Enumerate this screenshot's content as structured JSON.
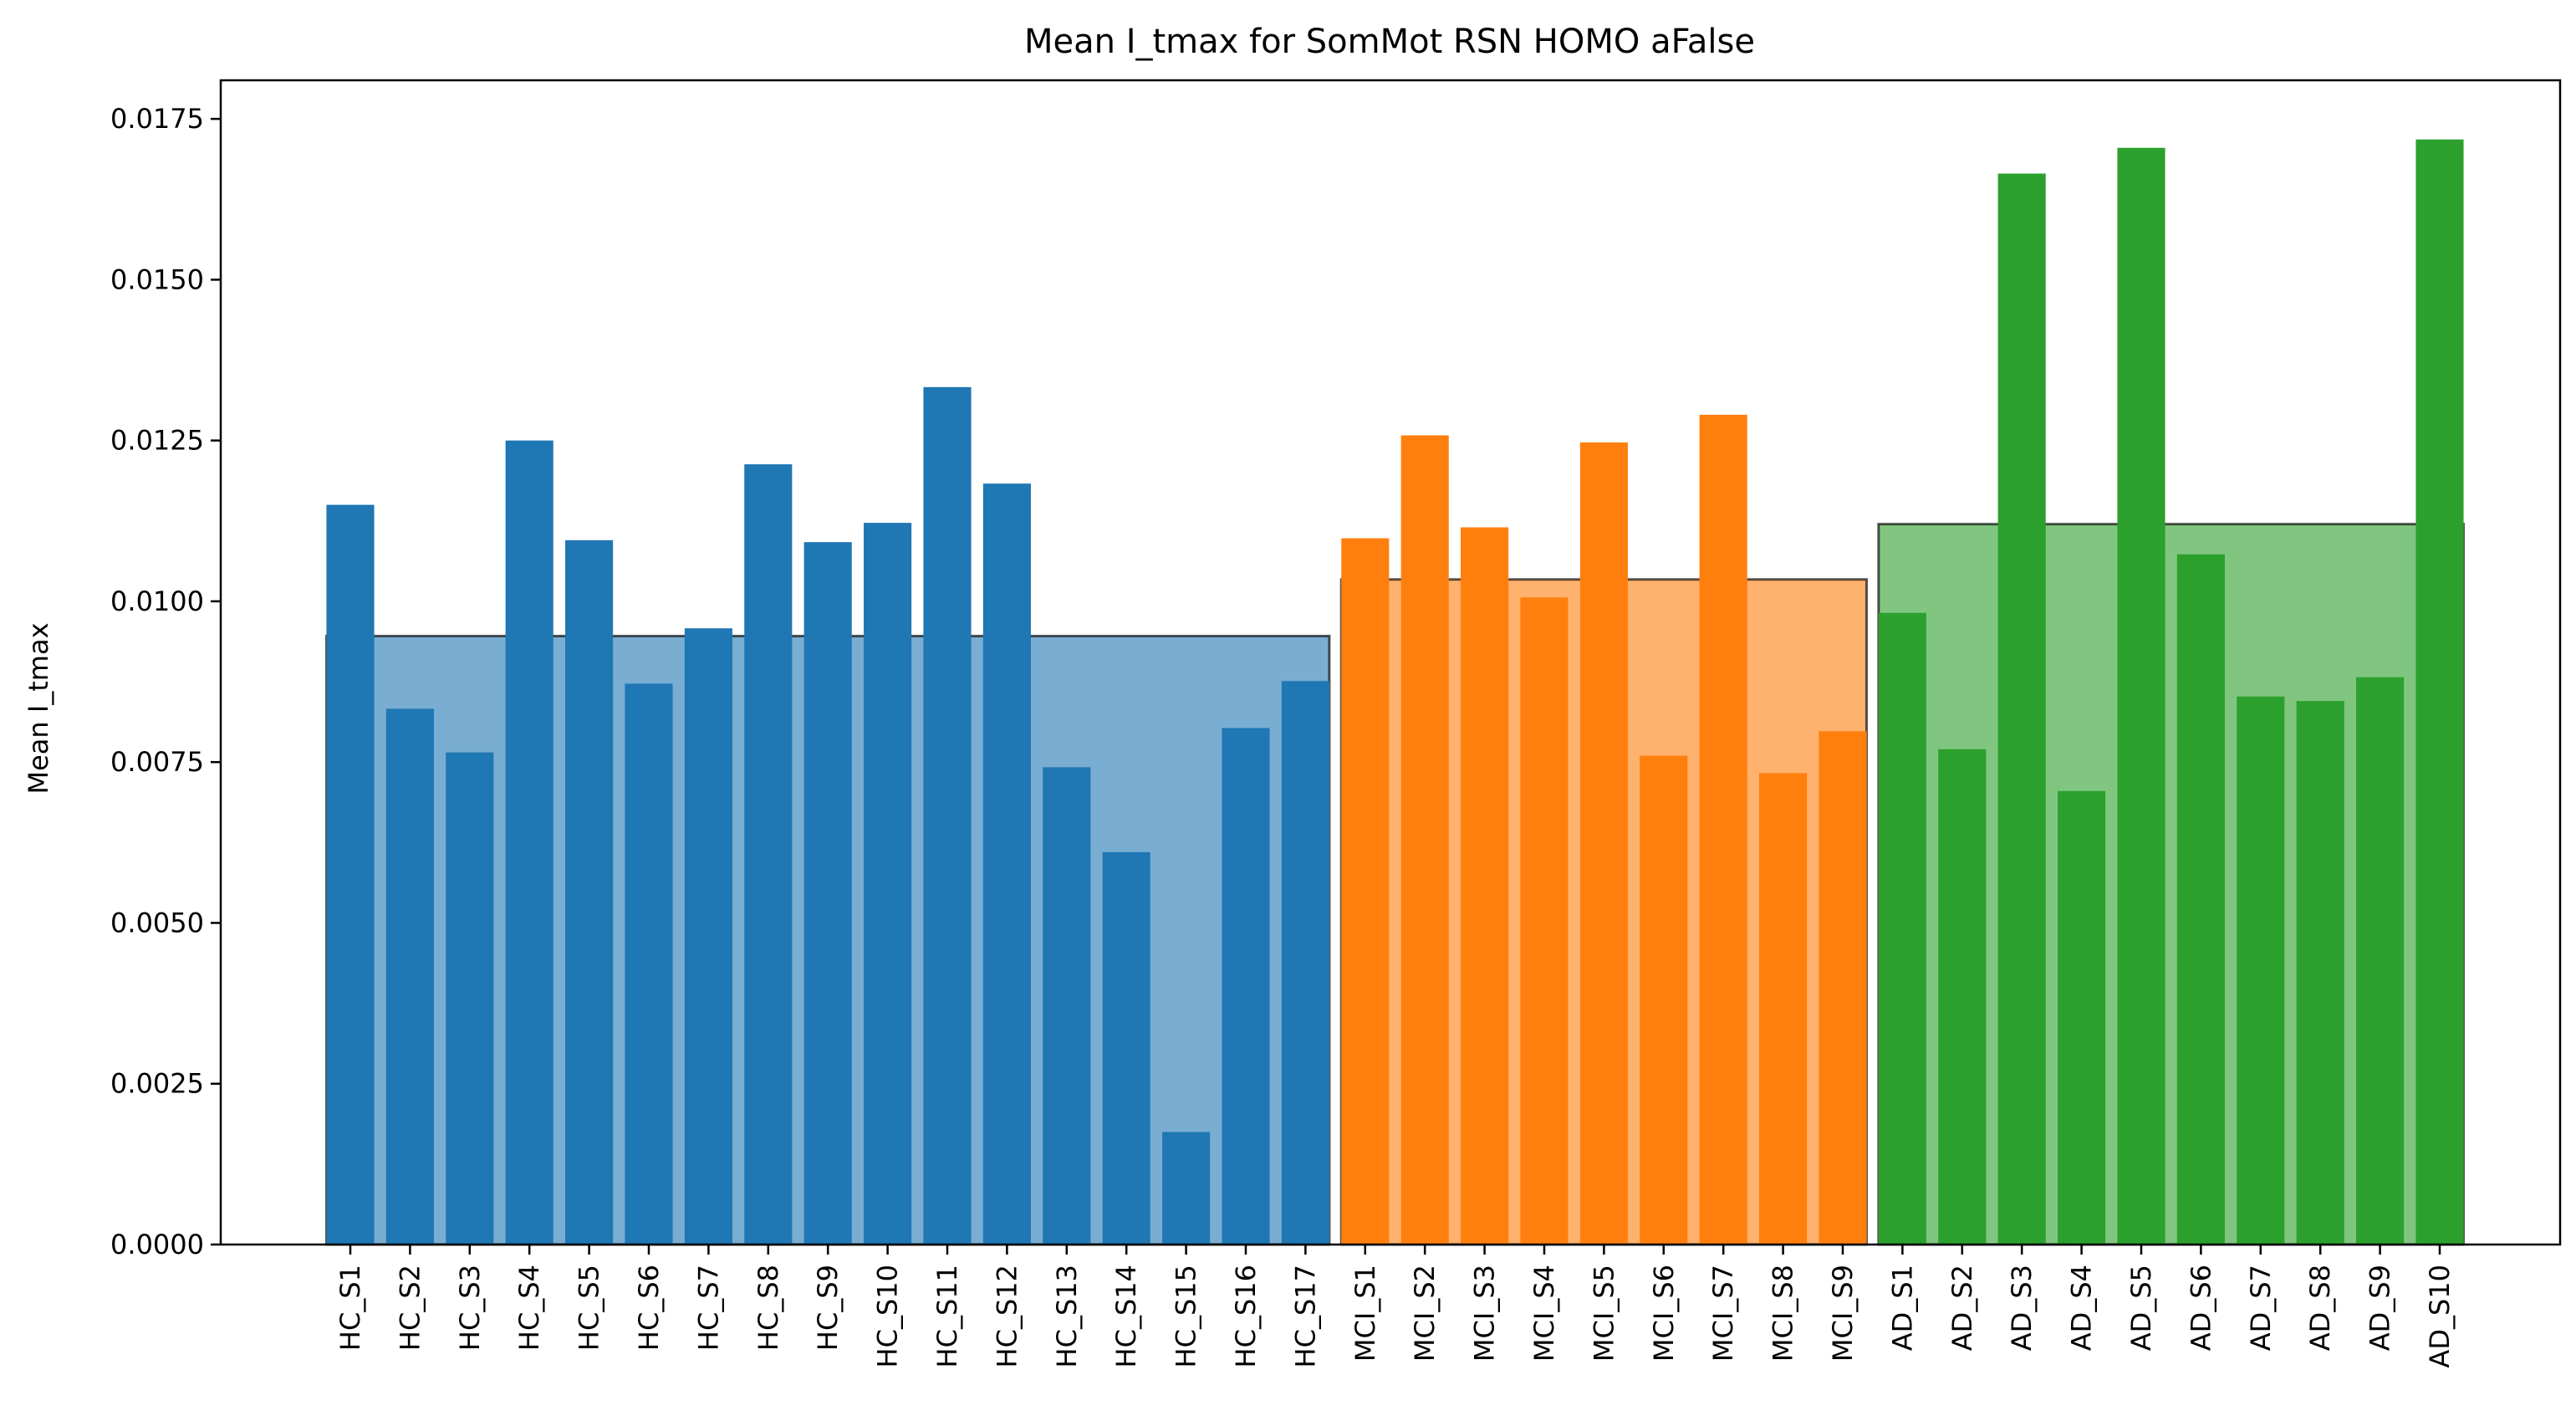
{
  "chart_data": {
    "type": "bar",
    "title": "Mean I_tmax for SomMot RSN HOMO aFalse",
    "xlabel": "",
    "ylabel": "Mean I_tmax",
    "ylim": [
      0,
      0.0181
    ],
    "yticks": [
      "0.0000",
      "0.0025",
      "0.0050",
      "0.0075",
      "0.0100",
      "0.0125",
      "0.0150",
      "0.0175"
    ],
    "grid": false,
    "legend": "none",
    "categories": [
      "HC_S1",
      "HC_S2",
      "HC_S3",
      "HC_S4",
      "HC_S5",
      "HC_S6",
      "HC_S7",
      "HC_S8",
      "HC_S9",
      "HC_S10",
      "HC_S11",
      "HC_S12",
      "HC_S13",
      "HC_S14",
      "HC_S15",
      "HC_S16",
      "HC_S17",
      "MCI_S1",
      "MCI_S2",
      "MCI_S3",
      "MCI_S4",
      "MCI_S5",
      "MCI_S6",
      "MCI_S7",
      "MCI_S8",
      "MCI_S9",
      "AD_S1",
      "AD_S2",
      "AD_S3",
      "AD_S4",
      "AD_S5",
      "AD_S6",
      "AD_S7",
      "AD_S8",
      "AD_S9",
      "AD_S10"
    ],
    "groups": [
      {
        "color": "#1f77b4",
        "categories": [
          "HC_S1",
          "HC_S2",
          "HC_S3",
          "HC_S4",
          "HC_S5",
          "HC_S6",
          "HC_S7",
          "HC_S8",
          "HC_S9",
          "HC_S10",
          "HC_S11",
          "HC_S12",
          "HC_S13",
          "HC_S14",
          "HC_S15",
          "HC_S16",
          "HC_S17"
        ],
        "values": [
          0.0115,
          0.00833,
          0.00765,
          0.0125,
          0.01095,
          0.00872,
          0.00958,
          0.01213,
          0.01092,
          0.01122,
          0.01333,
          0.01183,
          0.00742,
          0.0061,
          0.00175,
          0.00803,
          0.00876
        ],
        "mean": 0.00946
      },
      {
        "color": "#ff7f0e",
        "categories": [
          "MCI_S1",
          "MCI_S2",
          "MCI_S3",
          "MCI_S4",
          "MCI_S5",
          "MCI_S6",
          "MCI_S7",
          "MCI_S8",
          "MCI_S9"
        ],
        "values": [
          0.01098,
          0.01258,
          0.01115,
          0.01006,
          0.01247,
          0.0076,
          0.0129,
          0.00733,
          0.00798
        ],
        "mean": 0.01034
      },
      {
        "color": "#2ca02c",
        "categories": [
          "AD_S1",
          "AD_S2",
          "AD_S3",
          "AD_S4",
          "AD_S5",
          "AD_S6",
          "AD_S7",
          "AD_S8",
          "AD_S9",
          "AD_S10"
        ],
        "values": [
          0.00982,
          0.0077,
          0.01665,
          0.00705,
          0.01705,
          0.01073,
          0.00852,
          0.00845,
          0.00882,
          0.01718
        ],
        "mean": 0.0112
      }
    ]
  }
}
